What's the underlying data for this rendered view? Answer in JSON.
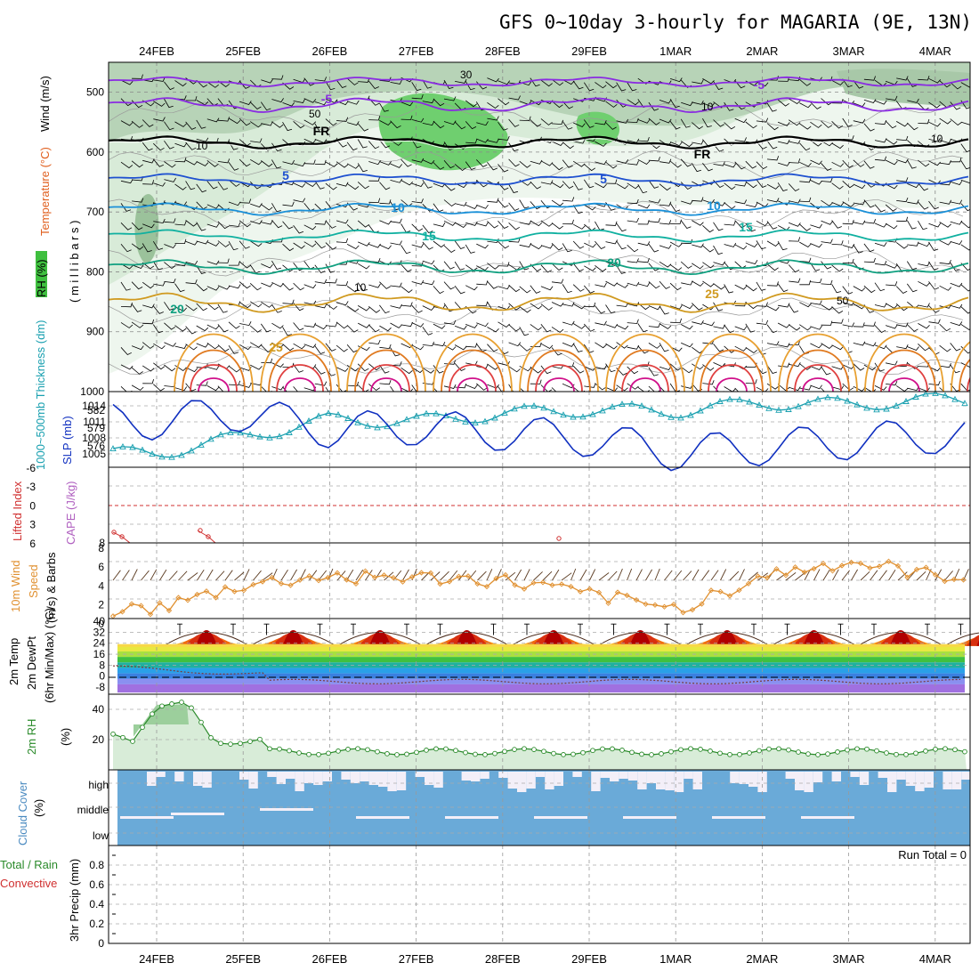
{
  "title": "GFS 0~10day 3-hourly for MAGARIA (9E, 13N)",
  "dates": [
    "24FEB",
    "25FEB",
    "26FEB",
    "27FEB",
    "28FEB",
    "29FEB",
    "1MAR",
    "2MAR",
    "3MAR",
    "4MAR"
  ],
  "colors": {
    "rh": "#3fbf3f",
    "temp": "#e06020",
    "cape": "#b060c0",
    "li": "#d03030",
    "thick": "#1aa0b0",
    "slp": "#1030c0",
    "wind": "#e09030",
    "rh2m": "#2a8a2a",
    "cloud": "#6aaad8",
    "rain": "#d03030"
  },
  "panels": {
    "profile": {
      "label_rh": "RH (%)",
      "label_temp": "Temperature (°C)",
      "label_wind": "Wind (m/s)",
      "label_mb": "( m i l l i b a r s )",
      "y_ticks": [
        "500",
        "600",
        "700",
        "800",
        "900",
        "1000"
      ],
      "contour_labels": [
        {
          "text": "-5",
          "color": "#8a2be2"
        },
        {
          "text": "-5",
          "color": "#8a2be2"
        },
        {
          "text": "FR",
          "color": "#000000"
        },
        {
          "text": "FR",
          "color": "#000000"
        },
        {
          "text": "5",
          "color": "#1e50d0"
        },
        {
          "text": "5",
          "color": "#1e50d0"
        },
        {
          "text": "10",
          "color": "#1a90d8"
        },
        {
          "text": "10",
          "color": "#1a90d8"
        },
        {
          "text": "15",
          "color": "#10b0a0"
        },
        {
          "text": "15",
          "color": "#10b0a0"
        },
        {
          "text": "20",
          "color": "#10a080"
        },
        {
          "text": "20",
          "color": "#10a080"
        },
        {
          "text": "25",
          "color": "#d09a20"
        },
        {
          "text": "25",
          "color": "#d09a20"
        }
      ],
      "rh_labels": [
        "30",
        "50",
        "10",
        "10",
        "10",
        "50",
        "10"
      ]
    },
    "slp": {
      "label_thick": "1000~500mb Thickness (dm)",
      "label_slp": "SLP (mb)",
      "left_ticks": [
        "582",
        "579",
        "576"
      ],
      "right_ticks": [
        "1014",
        "1011",
        "1008",
        "1005"
      ]
    },
    "cape": {
      "label_li": "Lifted Index",
      "label_cape": "CAPE (J/kg)",
      "li_ticks": [
        "-6",
        "-3",
        "0",
        "3",
        "6"
      ],
      "cape_ticks": [
        "8"
      ]
    },
    "wind10": {
      "label_a": "10m Wind",
      "label_b": "Speed",
      "label_c": "(m/s) & Barbs",
      "ticks": [
        "8",
        "6",
        "4",
        "2",
        "0"
      ]
    },
    "temp2m": {
      "label_a": "2m Temp",
      "label_b": "2m DewPt",
      "label_c": "(6hr Min/Max) (°C)",
      "ticks": [
        "40",
        "32",
        "24",
        "16",
        "8",
        "0",
        "-8"
      ]
    },
    "rh2m": {
      "label_a": "2m RH",
      "label_b": "(%)",
      "ticks": [
        "40",
        "20"
      ]
    },
    "cloud": {
      "label_a": "Cloud Cover",
      "label_b": "(%)",
      "levels": [
        "high",
        "middle",
        "low"
      ]
    },
    "precip": {
      "label_a": "Total / Rain",
      "label_b": "Convective",
      "label_c": "3hr Precip (mm)",
      "run_total": "Run Total = 0",
      "ticks": [
        "0.8",
        "0.6",
        "0.4",
        "0.2",
        "0"
      ]
    }
  },
  "chart_data": [
    {
      "type": "line",
      "title": "GFS 0~10day 3-hourly for MAGARIA (9E, 13N)",
      "xlabel": "",
      "ylabel": "SLP (mb)",
      "ylim": [
        1004,
        1015
      ],
      "x": [
        "24FEB",
        "25FEB",
        "26FEB",
        "27FEB",
        "28FEB",
        "29FEB",
        "1MAR",
        "2MAR",
        "3MAR",
        "4MAR"
      ],
      "series": [
        {
          "name": "SLP (mb)",
          "values": [
            1011.5,
            1013.0,
            1010.0,
            1010.5,
            1009.5,
            1008.5,
            1006.0,
            1007.0,
            1008.0,
            1009.0
          ]
        },
        {
          "name": "1000~500mb Thickness (dm)",
          "values": [
            575.8,
            578.0,
            580.2,
            580.0,
            581.0,
            581.5,
            581.3,
            582.4,
            582.2,
            582.8
          ]
        }
      ]
    },
    {
      "type": "line",
      "xlabel": "",
      "ylabel": "10m Wind Speed (m/s) & Barbs",
      "ylim": [
        0,
        8
      ],
      "x": [
        "24FEB",
        "25FEB",
        "26FEB",
        "27FEB",
        "28FEB",
        "29FEB",
        "1MAR",
        "2MAR",
        "3MAR",
        "4MAR"
      ],
      "series": [
        {
          "name": "10m Wind",
          "values": [
            1.0,
            3.5,
            4.5,
            4.3,
            4.0,
            2.5,
            1.0,
            4.5,
            6.0,
            4.5
          ]
        }
      ]
    },
    {
      "type": "area",
      "xlabel": "",
      "ylabel": "2m Temp / 2m DewPt (°C)",
      "ylim": [
        -12,
        42
      ],
      "x": [
        "24FEB",
        "25FEB",
        "26FEB",
        "27FEB",
        "28FEB",
        "29FEB",
        "1MAR",
        "2MAR",
        "3MAR",
        "4MAR"
      ],
      "series": [
        {
          "name": "2m Temp",
          "values": [
            35,
            34,
            36,
            36,
            37,
            38,
            38,
            39,
            38,
            38
          ]
        },
        {
          "name": "2m DewPt",
          "values": [
            6,
            4,
            -3,
            -5,
            -6,
            -4,
            -3,
            -4,
            -5,
            -6
          ]
        }
      ]
    },
    {
      "type": "line",
      "xlabel": "",
      "ylabel": "2m RH (%)",
      "ylim": [
        0,
        50
      ],
      "x": [
        "24FEB",
        "25FEB",
        "26FEB",
        "27FEB",
        "28FEB",
        "29FEB",
        "1MAR",
        "2MAR",
        "3MAR",
        "4MAR"
      ],
      "series": [
        {
          "name": "2m RH",
          "values": [
            43,
            19,
            12,
            13,
            12,
            11,
            12,
            14,
            13,
            11
          ]
        }
      ]
    },
    {
      "type": "bar",
      "xlabel": "",
      "ylabel": "3hr Precip (mm)",
      "ylim": [
        0,
        1
      ],
      "categories": [
        "24FEB",
        "25FEB",
        "26FEB",
        "27FEB",
        "28FEB",
        "29FEB",
        "1MAR",
        "2MAR",
        "3MAR",
        "4MAR"
      ],
      "values": [
        0,
        0,
        0,
        0,
        0,
        0,
        0,
        0,
        0,
        0
      ]
    }
  ]
}
